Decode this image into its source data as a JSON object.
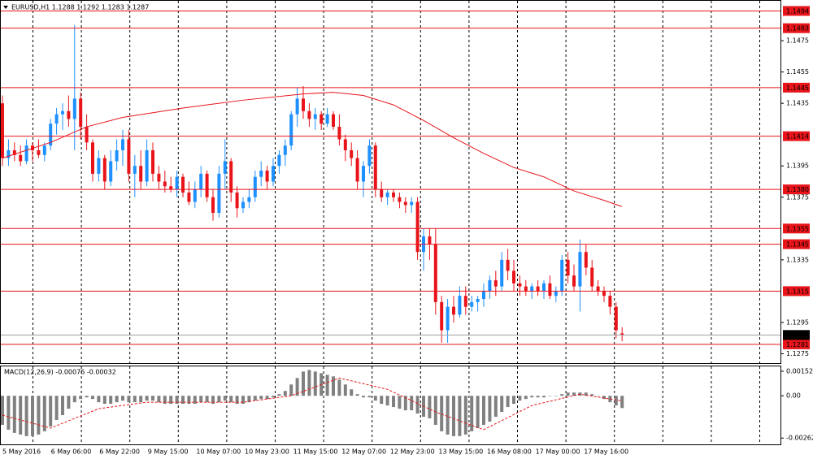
{
  "chart_data": [
    {
      "type": "candlestick",
      "title": "EURUSD,H1  1.1288 1.1292 1.1283 1.1287",
      "up_color": "#1e90ff",
      "down_color": "#e8141a",
      "ylim": [
        1.1269,
        1.1501
      ],
      "yticks": [
        1.1475,
        1.1455,
        1.1435,
        1.1395,
        1.1375,
        1.1335,
        1.1295,
        1.1275
      ],
      "levels": [
        1.1494,
        1.1483,
        1.1445,
        1.1414,
        {
          "value": 1.138,
          "label": "1.1380"
        },
        1.1355,
        1.1345,
        1.1315,
        1.1281
      ],
      "level_color": "#e8141a",
      "current_price": 1.1287,
      "x_labels": [
        "5 May 2016",
        "6 May 06:00",
        "6 May 22:00",
        "9 May 15:00",
        "10 May 07:00",
        "10 May 23:00",
        "11 May 15:00",
        "12 May 07:00",
        "12 May 23:00",
        "13 May 15:00",
        "16 May 08:00",
        "17 May 00:00",
        "17 May 16:00"
      ],
      "ohlc": [
        [
          1.1435,
          1.144,
          1.1395,
          1.14
        ],
        [
          1.14,
          1.1412,
          1.1395,
          1.1405
        ],
        [
          1.1405,
          1.141,
          1.1398,
          1.1402
        ],
        [
          1.1402,
          1.1408,
          1.1395,
          1.1398
        ],
        [
          1.1398,
          1.1412,
          1.1396,
          1.1408
        ],
        [
          1.1408,
          1.141,
          1.1398,
          1.1405
        ],
        [
          1.1405,
          1.1412,
          1.14,
          1.1402
        ],
        [
          1.1402,
          1.141,
          1.1398,
          1.1408
        ],
        [
          1.1408,
          1.1425,
          1.1405,
          1.1422
        ],
        [
          1.1422,
          1.1432,
          1.1415,
          1.1428
        ],
        [
          1.1428,
          1.1435,
          1.1418,
          1.143
        ],
        [
          1.143,
          1.144,
          1.142,
          1.1425
        ],
        [
          1.1425,
          1.1485,
          1.1405,
          1.1438
        ],
        [
          1.1438,
          1.1442,
          1.1412,
          1.142
        ],
        [
          1.142,
          1.1428,
          1.1405,
          1.141
        ],
        [
          1.141,
          1.1412,
          1.1385,
          1.139
        ],
        [
          1.139,
          1.1405,
          1.1385,
          1.14
        ],
        [
          1.14,
          1.1402,
          1.138,
          1.1385
        ],
        [
          1.1385,
          1.1405,
          1.1382,
          1.1398
        ],
        [
          1.1398,
          1.1412,
          1.1392,
          1.1405
        ],
        [
          1.1405,
          1.1418,
          1.1395,
          1.1412
        ],
        [
          1.1412,
          1.1418,
          1.1385,
          1.139
        ],
        [
          1.139,
          1.1402,
          1.1375,
          1.1395
        ],
        [
          1.1395,
          1.1405,
          1.138,
          1.1385
        ],
        [
          1.1385,
          1.1412,
          1.1382,
          1.1405
        ],
        [
          1.1405,
          1.141,
          1.1385,
          1.139
        ],
        [
          1.139,
          1.1395,
          1.138,
          1.1385
        ],
        [
          1.1385,
          1.1392,
          1.1378,
          1.1382
        ],
        [
          1.1382,
          1.1388,
          1.1378,
          1.138
        ],
        [
          1.138,
          1.1392,
          1.1375,
          1.1388
        ],
        [
          1.1388,
          1.139,
          1.1375,
          1.1378
        ],
        [
          1.1378,
          1.1385,
          1.137,
          1.1372
        ],
        [
          1.1372,
          1.1385,
          1.1368,
          1.138
        ],
        [
          1.138,
          1.1395,
          1.1375,
          1.139
        ],
        [
          1.139,
          1.1392,
          1.1372,
          1.1375
        ],
        [
          1.1375,
          1.138,
          1.136,
          1.1365
        ],
        [
          1.1365,
          1.1395,
          1.1362,
          1.139
        ],
        [
          1.139,
          1.1412,
          1.138,
          1.1398
        ],
        [
          1.1398,
          1.14,
          1.1372,
          1.1378
        ],
        [
          1.1378,
          1.1382,
          1.1362,
          1.1368
        ],
        [
          1.1368,
          1.1375,
          1.1365,
          1.1372
        ],
        [
          1.1372,
          1.138,
          1.1368,
          1.1375
        ],
        [
          1.1375,
          1.1392,
          1.1372,
          1.1388
        ],
        [
          1.1388,
          1.1398,
          1.1382,
          1.1392
        ],
        [
          1.1392,
          1.1395,
          1.138,
          1.1385
        ],
        [
          1.1385,
          1.14,
          1.1382,
          1.1395
        ],
        [
          1.1395,
          1.1405,
          1.139,
          1.1402
        ],
        [
          1.1402,
          1.1412,
          1.1395,
          1.1408
        ],
        [
          1.1408,
          1.143,
          1.1405,
          1.1428
        ],
        [
          1.1428,
          1.1445,
          1.142,
          1.1438
        ],
        [
          1.1438,
          1.1446,
          1.1425,
          1.143
        ],
        [
          1.143,
          1.1435,
          1.142,
          1.1425
        ],
        [
          1.1425,
          1.1432,
          1.1418,
          1.1428
        ],
        [
          1.1428,
          1.143,
          1.1418,
          1.1422
        ],
        [
          1.1422,
          1.1432,
          1.142,
          1.1428
        ],
        [
          1.1428,
          1.143,
          1.1418,
          1.142
        ],
        [
          1.142,
          1.1428,
          1.1408,
          1.1412
        ],
        [
          1.1412,
          1.1415,
          1.1398,
          1.1405
        ],
        [
          1.1405,
          1.141,
          1.1395,
          1.14
        ],
        [
          1.14,
          1.1405,
          1.138,
          1.1385
        ],
        [
          1.1385,
          1.1398,
          1.1375,
          1.1395
        ],
        [
          1.1395,
          1.1412,
          1.139,
          1.1408
        ],
        [
          1.1408,
          1.141,
          1.1375,
          1.138
        ],
        [
          1.138,
          1.1385,
          1.1372,
          1.1375
        ],
        [
          1.1375,
          1.138,
          1.137,
          1.1378
        ],
        [
          1.1378,
          1.138,
          1.1372,
          1.1375
        ],
        [
          1.1375,
          1.1378,
          1.1368,
          1.1372
        ],
        [
          1.1372,
          1.1375,
          1.1365,
          1.137
        ],
        [
          1.137,
          1.1375,
          1.1365,
          1.1372
        ],
        [
          1.1372,
          1.1375,
          1.1335,
          1.134
        ],
        [
          1.134,
          1.1355,
          1.1328,
          1.135
        ],
        [
          1.135,
          1.1355,
          1.1335,
          1.1345
        ],
        [
          1.1345,
          1.1355,
          1.13,
          1.1308
        ],
        [
          1.1308,
          1.1312,
          1.1282,
          1.129
        ],
        [
          1.129,
          1.131,
          1.1282,
          1.1305
        ],
        [
          1.1305,
          1.1312,
          1.1295,
          1.13
        ],
        [
          1.13,
          1.1318,
          1.1298,
          1.1312
        ],
        [
          1.1312,
          1.1318,
          1.13,
          1.1305
        ],
        [
          1.1305,
          1.1312,
          1.1302,
          1.1308
        ],
        [
          1.1308,
          1.1312,
          1.1302,
          1.131
        ],
        [
          1.131,
          1.132,
          1.1305,
          1.1315
        ],
        [
          1.1315,
          1.1325,
          1.131,
          1.1322
        ],
        [
          1.1322,
          1.1328,
          1.1312,
          1.1318
        ],
        [
          1.1318,
          1.134,
          1.1315,
          1.1335
        ],
        [
          1.1335,
          1.1342,
          1.1322,
          1.1328
        ],
        [
          1.1328,
          1.1335,
          1.1315,
          1.132
        ],
        [
          1.132,
          1.1325,
          1.1312,
          1.1318
        ],
        [
          1.1318,
          1.1322,
          1.1312,
          1.1315
        ],
        [
          1.1315,
          1.132,
          1.131,
          1.1318
        ],
        [
          1.1318,
          1.1322,
          1.1312,
          1.1315
        ],
        [
          1.1315,
          1.1322,
          1.131,
          1.132
        ],
        [
          1.132,
          1.1325,
          1.131,
          1.1312
        ],
        [
          1.1312,
          1.1318,
          1.1308,
          1.1315
        ],
        [
          1.1315,
          1.1338,
          1.1312,
          1.1335
        ],
        [
          1.1335,
          1.134,
          1.132,
          1.1325
        ],
        [
          1.1325,
          1.1332,
          1.1315,
          1.1318
        ],
        [
          1.1318,
          1.1348,
          1.1302,
          1.134
        ],
        [
          1.134,
          1.1345,
          1.1325,
          1.133
        ],
        [
          1.133,
          1.1335,
          1.1315,
          1.1318
        ],
        [
          1.1318,
          1.1322,
          1.1312,
          1.1315
        ],
        [
          1.1315,
          1.1318,
          1.1308,
          1.1312
        ],
        [
          1.1312,
          1.1315,
          1.13,
          1.1305
        ],
        [
          1.1305,
          1.1308,
          1.1285,
          1.129
        ],
        [
          1.1288,
          1.1292,
          1.1283,
          1.1287
        ]
      ],
      "ma": {
        "color": "#e8141a",
        "x": [
          0,
          8,
          14,
          20,
          30,
          40,
          50,
          55,
          60,
          65,
          70,
          75,
          80,
          85,
          90,
          95,
          100,
          103
        ],
        "values": [
          1.14,
          1.141,
          1.142,
          1.1426,
          1.1432,
          1.1437,
          1.1441,
          1.1442,
          1.144,
          1.1434,
          1.1424,
          1.1413,
          1.1403,
          1.1394,
          1.1388,
          1.1379,
          1.1373,
          1.1369
        ]
      }
    },
    {
      "type": "macd",
      "title": "MACD(12,26,9) -0.00076 -0.00032",
      "ylim": [
        -0.00301,
        0.00182
      ],
      "yticks": [
        0.00152,
        {
          "value": 0,
          "label": "0.00"
        },
        -0.00262
      ],
      "hist_color": "#808080",
      "signal_color": "#e8141a",
      "values": [
        -0.0018,
        -0.0021,
        -0.0023,
        -0.0024,
        -0.0025,
        -0.0025,
        -0.0024,
        -0.0022,
        -0.0019,
        -0.0015,
        -0.0012,
        -0.0008,
        -0.0004,
        -0.0002,
        -0.0001,
        -0.0002,
        -0.0004,
        -0.0005,
        -0.0005,
        -0.0004,
        -0.0003,
        -0.0004,
        -0.0004,
        -0.0004,
        -0.0003,
        -0.0003,
        -0.0004,
        -0.0005,
        -0.0005,
        -0.0005,
        -0.0005,
        -0.0005,
        -0.0005,
        -0.0004,
        -0.0004,
        -0.0005,
        -0.0004,
        -0.0003,
        -0.0004,
        -0.0005,
        -0.0005,
        -0.0004,
        -0.0003,
        -0.0002,
        -0.0002,
        -0.0001,
        0.0001,
        0.0003,
        0.0007,
        0.0011,
        0.0015,
        0.0016,
        0.0015,
        0.0014,
        0.0013,
        0.0012,
        0.001,
        0.0007,
        0.0004,
        0.0001,
        -0.0001,
        -0.0001,
        -0.0003,
        -0.0005,
        -0.0006,
        -0.0007,
        -0.0008,
        -0.0009,
        -0.0009,
        -0.0011,
        -0.0013,
        -0.0014,
        -0.0018,
        -0.0022,
        -0.0024,
        -0.0025,
        -0.0025,
        -0.0024,
        -0.0022,
        -0.002,
        -0.0018,
        -0.0016,
        -0.0013,
        -0.001,
        -0.0007,
        -0.0005,
        -0.0003,
        -0.0002,
        -0.0001,
        -0.0001,
        -0.0001,
        0,
        0,
        0.0001,
        0.0002,
        0.0002,
        0.0002,
        0.0002,
        0.0001,
        0,
        -0.0002,
        -0.0004,
        -0.0006,
        -0.00076
      ],
      "signal": {
        "x": [
          0,
          8,
          16,
          24,
          32,
          40,
          48,
          56,
          64,
          72,
          80,
          88,
          96,
          103
        ],
        "values": [
          -0.0012,
          -0.002,
          -0.0008,
          -0.0004,
          -0.0004,
          -0.0004,
          0,
          0.0011,
          0.0004,
          -0.001,
          -0.0021,
          -0.0006,
          0.0001,
          -0.00032
        ]
      }
    }
  ]
}
